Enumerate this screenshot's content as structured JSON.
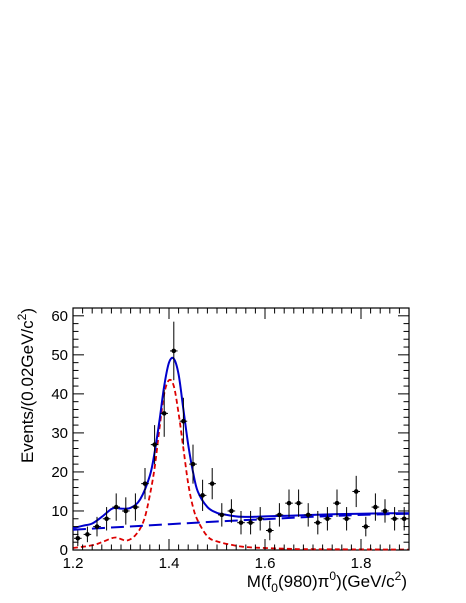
{
  "chart_data": {
    "type": "scatter",
    "title": "",
    "xlabel": "M(f0(980)π0)(GeV/c2)",
    "ylabel": "Events/(0.02GeV/c2)",
    "xlabel_parts": {
      "main": "M(f",
      "sub": "0",
      "mid": "(980)π",
      "sup": "0",
      "tail": ")(GeV/c",
      "sup2": "2",
      "end": ")"
    },
    "ylabel_parts": {
      "main": "Events/(0.02GeV/c",
      "sup": "2",
      "end": ")"
    },
    "xlim": [
      1.2,
      1.9
    ],
    "ylim": [
      0,
      62
    ],
    "x_ticks": [
      "1.2",
      "1.4",
      "1.6",
      "1.8"
    ],
    "y_ticks": [
      "0",
      "10",
      "20",
      "30",
      "40",
      "50",
      "60"
    ],
    "x_tick_values": [
      1.2,
      1.4,
      1.6,
      1.8
    ],
    "y_tick_values": [
      0,
      10,
      20,
      30,
      40,
      50,
      60
    ],
    "grid": false,
    "colors": {
      "data": "#000000",
      "total_fit": "#0000cc",
      "background": "#0000cc",
      "signal": "#dd0000"
    },
    "data_points": [
      {
        "x": 1.21,
        "y": 3,
        "err": 2
      },
      {
        "x": 1.23,
        "y": 4,
        "err": 2
      },
      {
        "x": 1.25,
        "y": 6,
        "err": 2.5
      },
      {
        "x": 1.27,
        "y": 8,
        "err": 3
      },
      {
        "x": 1.29,
        "y": 11,
        "err": 3.5
      },
      {
        "x": 1.31,
        "y": 10,
        "err": 3.5
      },
      {
        "x": 1.33,
        "y": 11,
        "err": 3.5
      },
      {
        "x": 1.35,
        "y": 17,
        "err": 4
      },
      {
        "x": 1.37,
        "y": 27,
        "err": 5
      },
      {
        "x": 1.39,
        "y": 35,
        "err": 6
      },
      {
        "x": 1.41,
        "y": 51,
        "err": 7.5
      },
      {
        "x": 1.43,
        "y": 33,
        "err": 6
      },
      {
        "x": 1.45,
        "y": 22,
        "err": 5
      },
      {
        "x": 1.47,
        "y": 14,
        "err": 4
      },
      {
        "x": 1.49,
        "y": 17,
        "err": 4
      },
      {
        "x": 1.51,
        "y": 9,
        "err": 3
      },
      {
        "x": 1.53,
        "y": 10,
        "err": 3
      },
      {
        "x": 1.55,
        "y": 7,
        "err": 3
      },
      {
        "x": 1.57,
        "y": 7,
        "err": 3
      },
      {
        "x": 1.59,
        "y": 8,
        "err": 3
      },
      {
        "x": 1.61,
        "y": 5,
        "err": 2.5
      },
      {
        "x": 1.63,
        "y": 9,
        "err": 3
      },
      {
        "x": 1.65,
        "y": 12,
        "err": 3.5
      },
      {
        "x": 1.67,
        "y": 12,
        "err": 3.5
      },
      {
        "x": 1.69,
        "y": 9,
        "err": 3
      },
      {
        "x": 1.71,
        "y": 7,
        "err": 3
      },
      {
        "x": 1.73,
        "y": 8,
        "err": 3
      },
      {
        "x": 1.75,
        "y": 12,
        "err": 3.5
      },
      {
        "x": 1.77,
        "y": 8,
        "err": 3
      },
      {
        "x": 1.79,
        "y": 15,
        "err": 4
      },
      {
        "x": 1.81,
        "y": 6,
        "err": 2.5
      },
      {
        "x": 1.83,
        "y": 11,
        "err": 3.5
      },
      {
        "x": 1.85,
        "y": 10,
        "err": 3
      },
      {
        "x": 1.87,
        "y": 8,
        "err": 3
      },
      {
        "x": 1.89,
        "y": 8,
        "err": 3
      }
    ],
    "curves": {
      "total_fit": {
        "x": [
          1.2,
          1.22,
          1.24,
          1.26,
          1.28,
          1.29,
          1.3,
          1.32,
          1.34,
          1.36,
          1.37,
          1.38,
          1.39,
          1.4,
          1.41,
          1.42,
          1.43,
          1.44,
          1.45,
          1.46,
          1.48,
          1.5,
          1.52,
          1.55,
          1.6,
          1.65,
          1.7,
          1.75,
          1.8,
          1.85,
          1.9
        ],
        "y": [
          5.6,
          6.2,
          6.8,
          8.5,
          10.5,
          10.8,
          10.6,
          10.8,
          13,
          19,
          25,
          33,
          42,
          48,
          49,
          45,
          36,
          27,
          20,
          15,
          11,
          9.5,
          9,
          8.5,
          8.6,
          8.8,
          9,
          9.2,
          9.3,
          9.4,
          9.4
        ]
      },
      "background": {
        "x": [
          1.2,
          1.3,
          1.4,
          1.5,
          1.6,
          1.7,
          1.8,
          1.9
        ],
        "y": [
          5.2,
          5.9,
          6.6,
          7.3,
          7.9,
          8.5,
          9,
          9.3
        ]
      },
      "signal": {
        "x": [
          1.2,
          1.24,
          1.26,
          1.28,
          1.29,
          1.3,
          1.31,
          1.32,
          1.33,
          1.34,
          1.35,
          1.36,
          1.37,
          1.38,
          1.39,
          1.4,
          1.41,
          1.42,
          1.43,
          1.44,
          1.45,
          1.46,
          1.48,
          1.5,
          1.55,
          1.6,
          1.65,
          1.7,
          1.9
        ],
        "y": [
          0.5,
          1.2,
          2,
          3,
          3.2,
          2.8,
          2.4,
          2.8,
          3.8,
          5.5,
          8.5,
          14,
          21,
          31,
          40,
          43.5,
          42,
          35,
          26,
          17,
          11,
          7.5,
          3.5,
          2.2,
          0.9,
          0.5,
          0.3,
          0.2,
          0.1
        ]
      }
    }
  }
}
